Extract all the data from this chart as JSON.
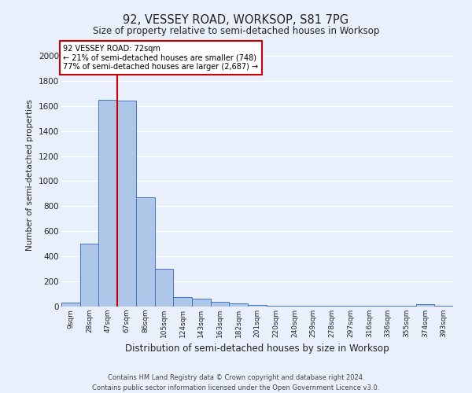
{
  "title": "92, VESSEY ROAD, WORKSOP, S81 7PG",
  "subtitle": "Size of property relative to semi-detached houses in Worksop",
  "xlabel": "Distribution of semi-detached houses by size in Worksop",
  "ylabel": "Number of semi-detached properties",
  "footnote": "Contains HM Land Registry data © Crown copyright and database right 2024.\nContains public sector information licensed under the Open Government Licence v3.0.",
  "categories": [
    "9sqm",
    "28sqm",
    "47sqm",
    "67sqm",
    "86sqm",
    "105sqm",
    "124sqm",
    "143sqm",
    "163sqm",
    "182sqm",
    "201sqm",
    "220sqm",
    "240sqm",
    "259sqm",
    "278sqm",
    "297sqm",
    "316sqm",
    "336sqm",
    "355sqm",
    "374sqm",
    "393sqm"
  ],
  "values": [
    30,
    500,
    1650,
    1640,
    870,
    300,
    75,
    60,
    40,
    25,
    15,
    5,
    5,
    5,
    5,
    5,
    5,
    5,
    5,
    20,
    5
  ],
  "bar_color": "#aec6e8",
  "bar_edge_color": "#4472c4",
  "property_label": "92 VESSEY ROAD: 72sqm",
  "pct_smaller": 21,
  "count_smaller": 748,
  "pct_larger": 77,
  "count_larger": 2687,
  "redline_x": 2.5,
  "ylim": [
    0,
    2100
  ],
  "yticks": [
    0,
    200,
    400,
    600,
    800,
    1000,
    1200,
    1400,
    1600,
    1800,
    2000
  ],
  "background_color": "#eaf0fb",
  "grid_color": "#ffffff",
  "annotation_box_color": "#ffffff",
  "annotation_box_edge": "#cc0000",
  "redline_color": "#cc0000"
}
